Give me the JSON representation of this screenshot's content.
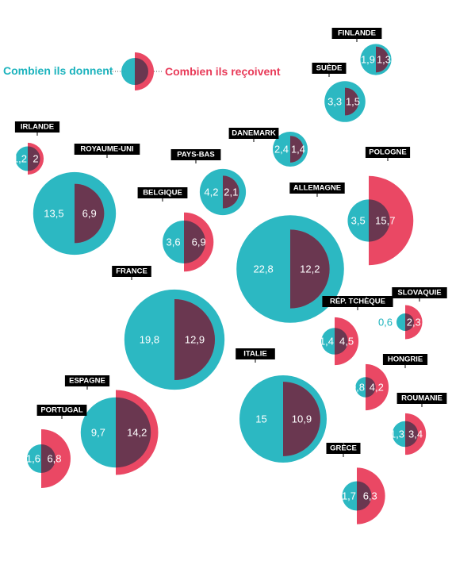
{
  "legend": {
    "give_label": "Combien ils donnent",
    "receive_label": "Combien ils reçoivent",
    "give_color": "#1cb3bd",
    "receive_color": "#e83a58",
    "overlap_color": "#6a3750"
  },
  "chart_data": {
    "type": "half-circle bubble comparison",
    "series": [
      {
        "name": "Combien ils donnent",
        "side": "left"
      },
      {
        "name": "Combien ils reçoivent",
        "side": "right"
      }
    ],
    "countries": [
      {
        "name": "FINLANDE",
        "give": "1,9",
        "receive": "1,3"
      },
      {
        "name": "SUÈDE",
        "give": "3,3",
        "receive": "1,5"
      },
      {
        "name": "IRLANDE",
        "give": "1,2",
        "receive": "2"
      },
      {
        "name": "DANEMARK",
        "give": "2,4",
        "receive": "1,4"
      },
      {
        "name": "ROYAUME-UNI",
        "give": "13,5",
        "receive": "6,9"
      },
      {
        "name": "PAYS-BAS",
        "give": "4,2",
        "receive": "2,1"
      },
      {
        "name": "POLOGNE",
        "give": "3,5",
        "receive": "15,7"
      },
      {
        "name": "BELGIQUE",
        "give": "3,6",
        "receive": "6,9"
      },
      {
        "name": "ALLEMAGNE",
        "give": "22,8",
        "receive": "12,2"
      },
      {
        "name": "FRANCE",
        "give": "19,8",
        "receive": "12,9"
      },
      {
        "name": "RÉP. TCHÈQUE",
        "give": "1,4",
        "receive": "4,5"
      },
      {
        "name": "SLOVAQUIE",
        "give": "0,6",
        "receive": "2,3"
      },
      {
        "name": "ITALIE",
        "give": "15",
        "receive": "10,9"
      },
      {
        "name": "HONGRIE",
        "give": "0,8",
        "receive": "4,2"
      },
      {
        "name": "ESPAGNE",
        "give": "9,7",
        "receive": "14,2"
      },
      {
        "name": "PORTUGAL",
        "give": "1,6",
        "receive": "6,8"
      },
      {
        "name": "ROUMANIE",
        "give": "1,3",
        "receive": "3,4"
      },
      {
        "name": "GRÈCE",
        "give": "1,7",
        "receive": "6,3"
      }
    ]
  }
}
